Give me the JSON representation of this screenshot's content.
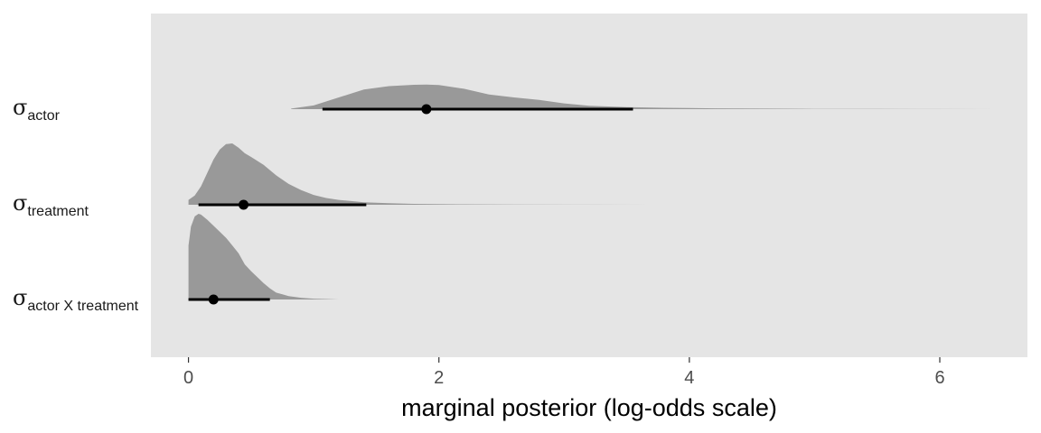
{
  "chart_data": {
    "type": "area",
    "subtype": "halfeye",
    "xlabel": "marginal posterior (log-odds scale)",
    "xlim": [
      -0.3,
      6.7
    ],
    "x_ticks": [
      0,
      2,
      4,
      6
    ],
    "x_tick_labels": [
      "0",
      "2",
      "4",
      "6"
    ],
    "grid": false,
    "panel_background": "#e5e5e5",
    "density_color": "#999999",
    "interval_color": "#000000",
    "series": [
      {
        "symbol": "σ",
        "label_sub": "actor",
        "point": 1.9,
        "interval": [
          1.07,
          3.55
        ],
        "x": [
          0.82,
          1.0,
          1.2,
          1.4,
          1.6,
          1.8,
          1.9,
          2.0,
          2.2,
          2.4,
          2.6,
          2.8,
          3.0,
          3.2,
          3.5,
          3.8,
          4.2,
          4.6,
          5.0,
          5.5,
          6.0,
          6.45
        ],
        "density": [
          0.02,
          0.14,
          0.45,
          0.75,
          0.88,
          0.93,
          0.94,
          0.92,
          0.78,
          0.56,
          0.45,
          0.35,
          0.22,
          0.13,
          0.08,
          0.05,
          0.03,
          0.02,
          0.01,
          0.006,
          0.003,
          0.0
        ]
      },
      {
        "symbol": "σ",
        "label_sub": "treatment",
        "point": 0.44,
        "interval": [
          0.08,
          1.42
        ],
        "x": [
          0.0,
          0.05,
          0.1,
          0.15,
          0.2,
          0.25,
          0.3,
          0.35,
          0.4,
          0.45,
          0.5,
          0.6,
          0.7,
          0.8,
          0.9,
          1.0,
          1.1,
          1.2,
          1.3,
          1.4,
          1.6,
          1.8,
          2.2,
          2.6,
          3.2,
          3.7
        ],
        "density": [
          0.08,
          0.15,
          0.3,
          0.52,
          0.74,
          0.9,
          0.99,
          1.0,
          0.93,
          0.84,
          0.78,
          0.65,
          0.48,
          0.34,
          0.24,
          0.16,
          0.11,
          0.08,
          0.06,
          0.04,
          0.025,
          0.015,
          0.008,
          0.004,
          0.002,
          0.0
        ]
      },
      {
        "symbol": "σ",
        "label_sub": "actor X treatment",
        "point": 0.2,
        "interval": [
          0.0,
          0.65
        ],
        "x": [
          0.0,
          0.02,
          0.05,
          0.08,
          0.1,
          0.15,
          0.2,
          0.25,
          0.3,
          0.35,
          0.4,
          0.45,
          0.5,
          0.55,
          0.6,
          0.65,
          0.7,
          0.75,
          0.8,
          0.9,
          1.0,
          1.1,
          1.2
        ],
        "density": [
          0.63,
          0.85,
          0.97,
          1.0,
          0.99,
          0.93,
          0.86,
          0.79,
          0.72,
          0.63,
          0.54,
          0.41,
          0.33,
          0.26,
          0.19,
          0.13,
          0.08,
          0.06,
          0.04,
          0.02,
          0.01,
          0.005,
          0.0
        ]
      }
    ]
  }
}
